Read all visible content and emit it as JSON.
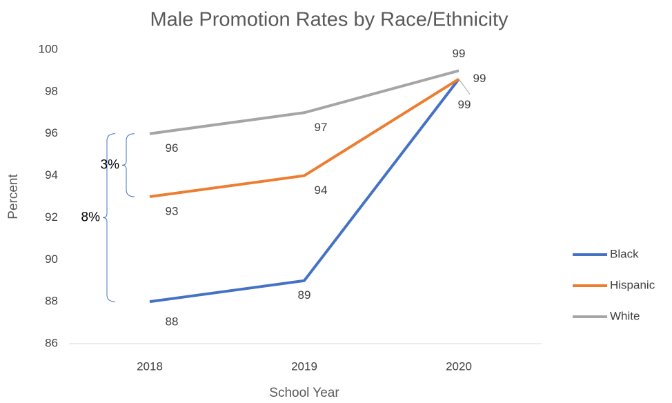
{
  "chart_data": {
    "type": "line",
    "title": "Male Promotion Rates by Race/Ethnicity",
    "x_label": "School Year",
    "y_label": "Percent",
    "categories": [
      "2018",
      "2019",
      "2020"
    ],
    "series": [
      {
        "name": "Black",
        "color": "#4472c4",
        "values": [
          88,
          89,
          98.6
        ],
        "value_labels": [
          "88",
          "89",
          "99"
        ]
      },
      {
        "name": "Hispanic",
        "color": "#ed7d31",
        "values": [
          93,
          94,
          98.6
        ],
        "value_labels": [
          "93",
          "94",
          "99"
        ]
      },
      {
        "name": "White",
        "color": "#a5a5a5",
        "values": [
          96,
          97,
          99
        ],
        "value_labels": [
          "96",
          "97",
          "99"
        ]
      }
    ],
    "ylim": [
      86,
      100
    ],
    "yticks": [
      86,
      88,
      90,
      92,
      94,
      96,
      98,
      100
    ],
    "grid": false,
    "legend": "right",
    "annotations": [
      "3%",
      "8%"
    ]
  }
}
